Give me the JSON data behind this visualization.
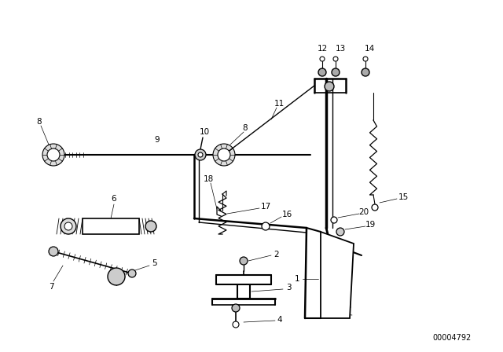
{
  "bg_color": "#ffffff",
  "line_color": "#000000",
  "catalog_number": "00004792",
  "label_fontsize": 7.5,
  "lw_main": 1.2,
  "lw_thin": 0.7
}
